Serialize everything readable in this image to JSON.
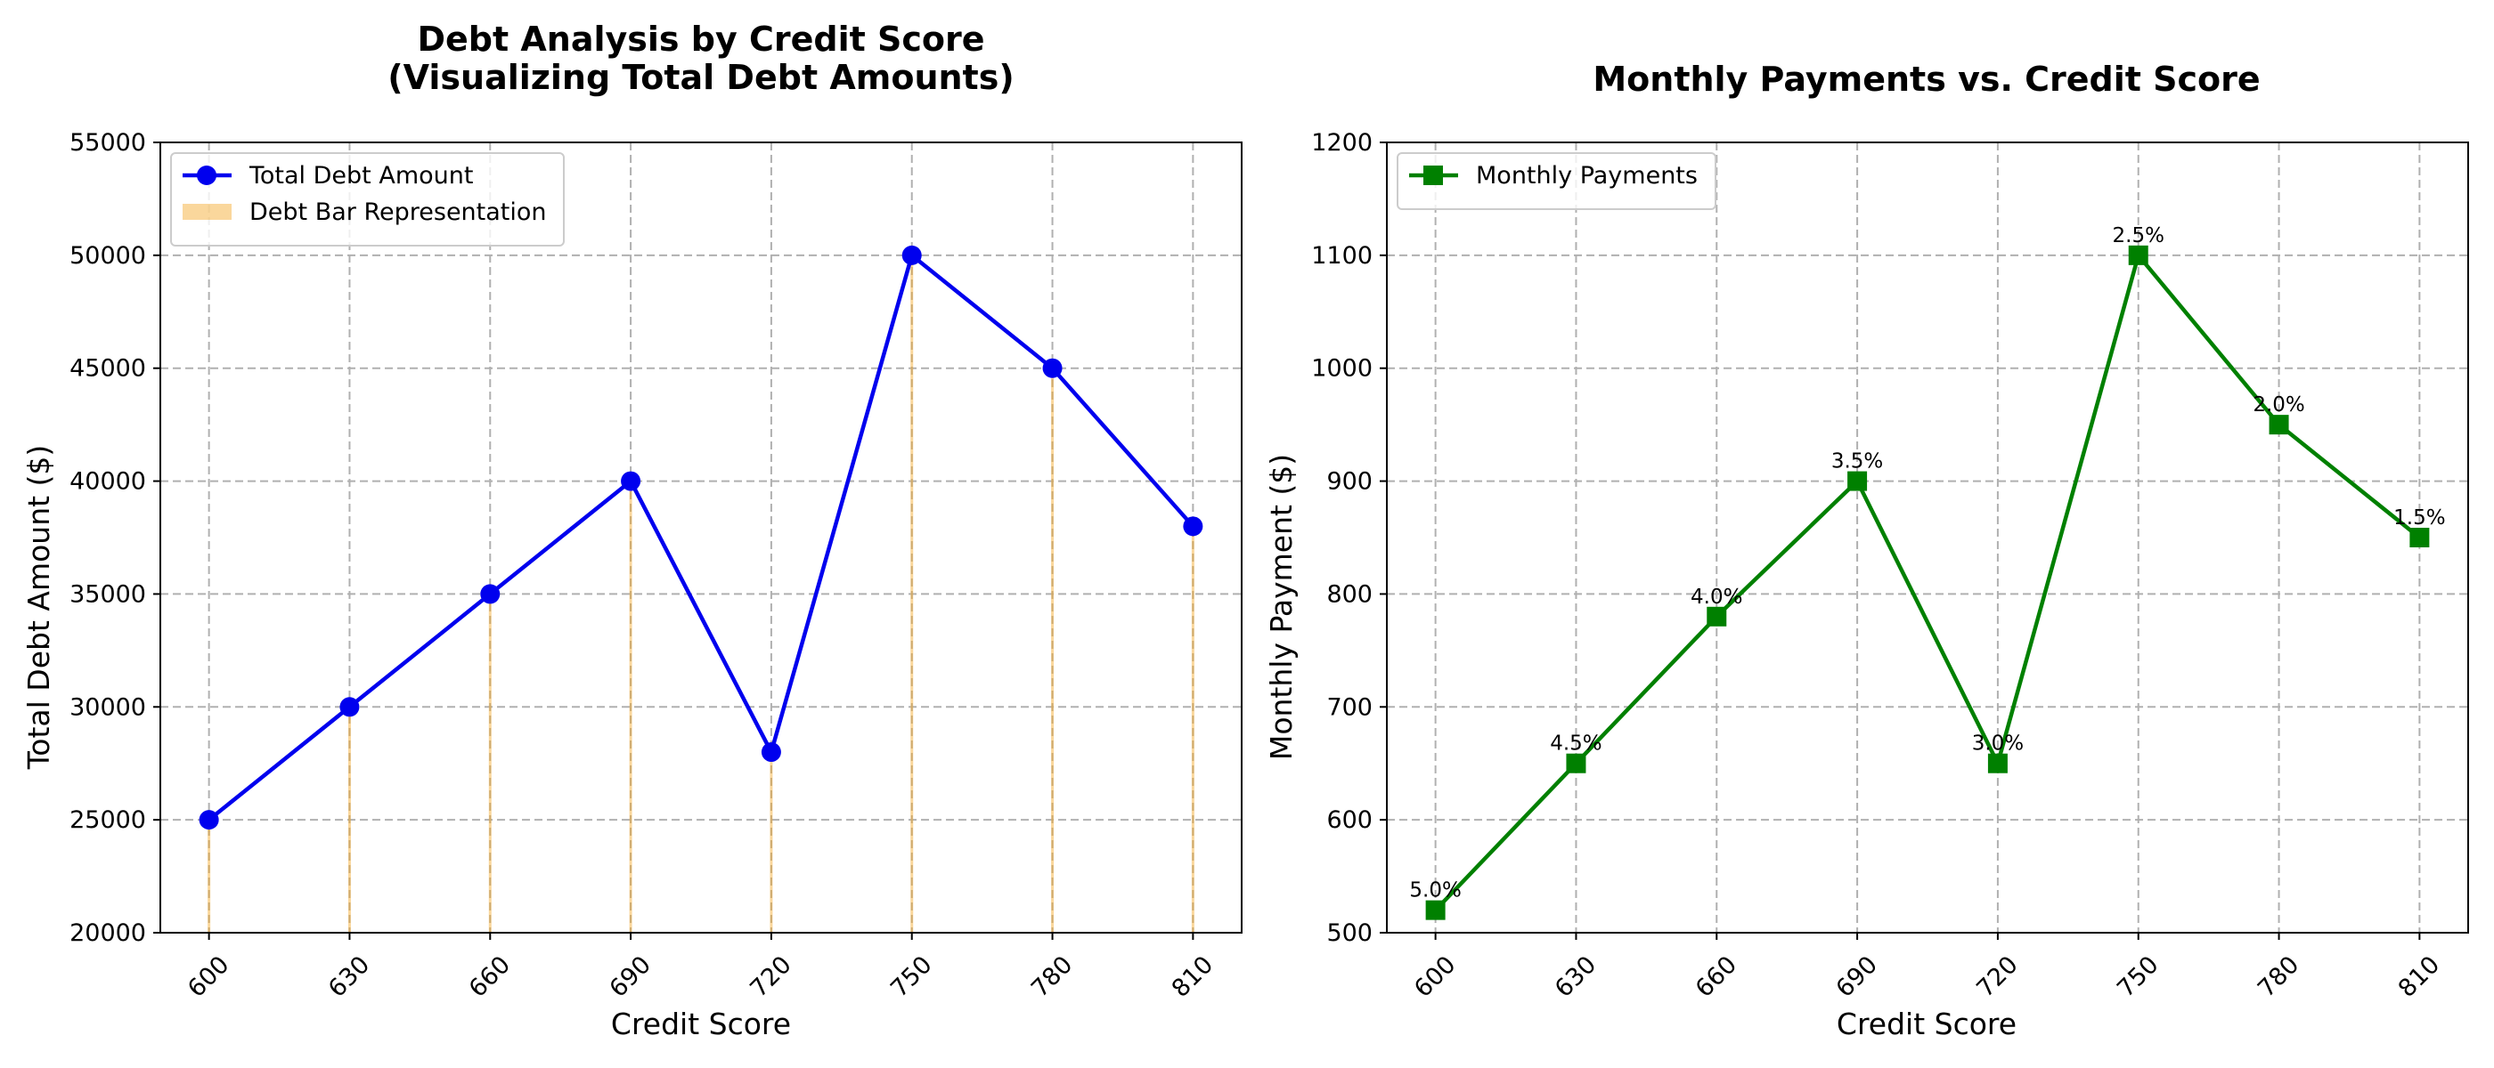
{
  "chart_data": [
    {
      "type": "line",
      "title": "Debt Analysis by Credit Score\n(Visualizing Total Debt Amounts)",
      "xlabel": "Credit Score",
      "ylabel": "Total Debt Amount ($)",
      "categories": [
        600,
        630,
        660,
        690,
        720,
        750,
        780,
        810
      ],
      "ylim": [
        20000,
        55000
      ],
      "yticks": [
        20000,
        25000,
        30000,
        35000,
        40000,
        45000,
        50000,
        55000
      ],
      "grid": true,
      "legend_position": "top-left",
      "series": [
        {
          "name": "Total Debt Amount",
          "kind": "line",
          "marker": "circle",
          "color": "#0000ee",
          "values": [
            25000,
            30000,
            35000,
            40000,
            28000,
            50000,
            45000,
            38000
          ]
        },
        {
          "name": "Debt Bar Representation",
          "kind": "bar",
          "color": "#f5a623",
          "values": [
            25000,
            30000,
            35000,
            40000,
            28000,
            50000,
            45000,
            38000
          ]
        }
      ]
    },
    {
      "type": "line",
      "title": "Monthly Payments vs. Credit Score",
      "xlabel": "Credit Score",
      "ylabel": "Monthly Payment ($)",
      "categories": [
        600,
        630,
        660,
        690,
        720,
        750,
        780,
        810
      ],
      "ylim": [
        500,
        1200
      ],
      "yticks": [
        500,
        600,
        700,
        800,
        900,
        1000,
        1100,
        1200
      ],
      "grid": true,
      "legend_position": "top-left",
      "series": [
        {
          "name": "Monthly Payments",
          "kind": "line",
          "marker": "square",
          "color": "#008000",
          "values": [
            520,
            650,
            780,
            900,
            650,
            1100,
            950,
            850
          ]
        }
      ],
      "point_labels": [
        "5.0%",
        "4.5%",
        "4.0%",
        "3.5%",
        "3.0%",
        "2.5%",
        "2.0%",
        "1.5%"
      ]
    }
  ]
}
